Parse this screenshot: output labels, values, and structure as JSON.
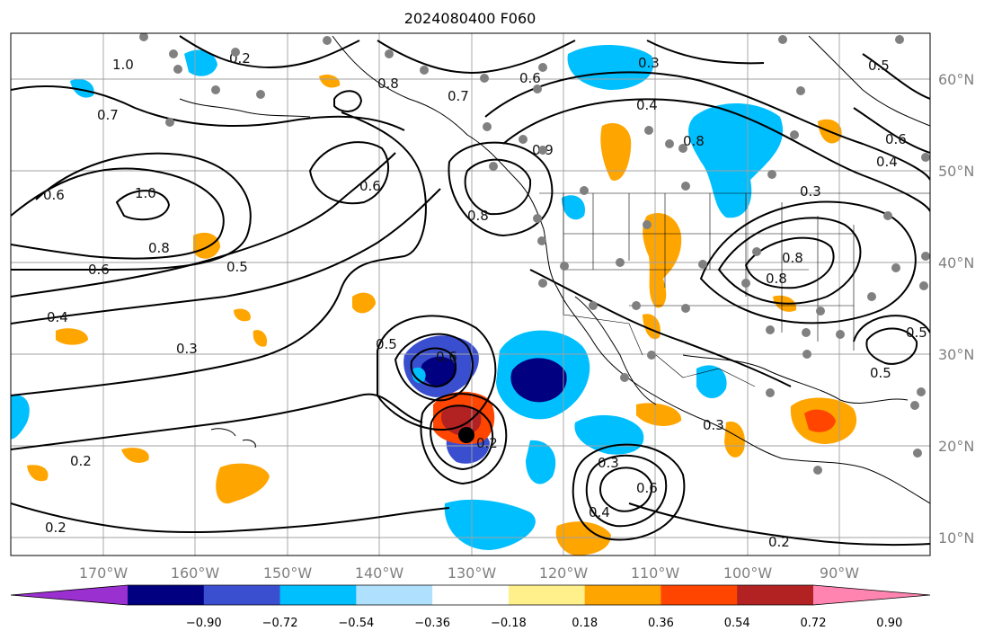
{
  "title": "2024080400 F060",
  "map": {
    "lon_ticks": [
      "170°W",
      "160°W",
      "150°W",
      "140°W",
      "130°W",
      "120°W",
      "110°W",
      "100°W",
      "90°W"
    ],
    "lat_ticks": [
      "60°N",
      "50°N",
      "40°N",
      "30°N",
      "20°N",
      "10°N"
    ],
    "contour_labels": [
      "1.0",
      "0.2",
      "0.7",
      "0.6",
      "0.5",
      "0.8",
      "1.0",
      "0.6",
      "0.8",
      "0.5",
      "0.6",
      "0.4",
      "0.3",
      "0.2",
      "0.2",
      "0.8",
      "0.6",
      "0.7",
      "0.5",
      "0.6",
      "0.3",
      "0.3",
      "0.4",
      "0.8",
      "0.3",
      "0.6",
      "0.8",
      "0.5",
      "0.4",
      "0.3",
      "0.2",
      "0.2",
      "0.4",
      "0.6",
      "0.8",
      "0.9",
      "0.5"
    ],
    "storm_center_marker": "black-dot",
    "station_marker": "gray-dot"
  },
  "colorbar": {
    "tick_labels": [
      "−0.90",
      "−0.72",
      "−0.54",
      "−0.36",
      "−0.18",
      "0.18",
      "0.36",
      "0.54",
      "0.72",
      "0.90"
    ],
    "colors": [
      "#9b30d0",
      "#000080",
      "#3a4fcf",
      "#00bfff",
      "#afe1ff",
      "#ffffff",
      "#fff08c",
      "#ffa500",
      "#ff4500",
      "#b22222",
      "#ff85b0"
    ]
  }
}
